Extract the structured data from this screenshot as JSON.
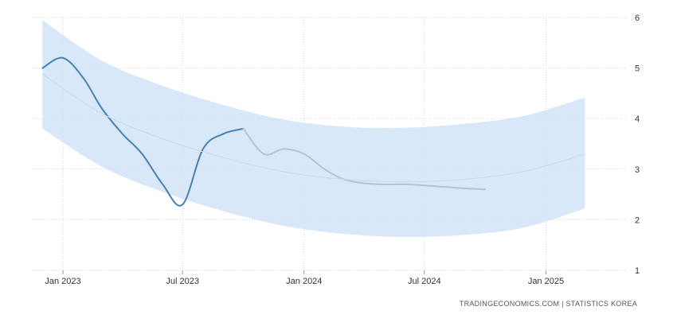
{
  "credit": "TRADINGECONOMICS.COM  |  STATISTICS KOREA",
  "chart_data": {
    "type": "line",
    "title": "",
    "xlabel": "",
    "ylabel": "",
    "x_ticks": [
      {
        "date": "2023-01-01",
        "label": "Jan 2023"
      },
      {
        "date": "2023-07-01",
        "label": "Jul 2023"
      },
      {
        "date": "2024-01-01",
        "label": "Jan 2024"
      },
      {
        "date": "2024-07-01",
        "label": "Jul 2024"
      },
      {
        "date": "2025-01-01",
        "label": "Jan 2025"
      }
    ],
    "xlim": [
      "2022-11-15",
      "2025-05-01"
    ],
    "y_ticks": [
      1,
      2,
      3,
      4,
      5,
      6
    ],
    "ylim": [
      1,
      6
    ],
    "y_axis_side": "right",
    "grid": true,
    "legend": "none",
    "series": [
      {
        "role": "actual",
        "color": "#4682b4",
        "points": [
          {
            "x": "2022-12-01",
            "y": 5.0
          },
          {
            "x": "2023-01-01",
            "y": 5.2
          },
          {
            "x": "2023-02-01",
            "y": 4.8
          },
          {
            "x": "2023-03-01",
            "y": 4.2
          },
          {
            "x": "2023-04-01",
            "y": 3.7
          },
          {
            "x": "2023-05-01",
            "y": 3.3
          },
          {
            "x": "2023-06-01",
            "y": 2.7
          },
          {
            "x": "2023-07-01",
            "y": 2.3
          },
          {
            "x": "2023-08-01",
            "y": 3.4
          },
          {
            "x": "2023-09-01",
            "y": 3.7
          },
          {
            "x": "2023-10-01",
            "y": 3.8
          }
        ]
      },
      {
        "role": "forecast",
        "color": "#b0c4de",
        "points": [
          {
            "x": "2023-10-01",
            "y": 3.8
          },
          {
            "x": "2023-11-01",
            "y": 3.3
          },
          {
            "x": "2023-12-01",
            "y": 3.4
          },
          {
            "x": "2024-01-01",
            "y": 3.3
          },
          {
            "x": "2024-02-01",
            "y": 3.0
          },
          {
            "x": "2024-03-01",
            "y": 2.8
          },
          {
            "x": "2024-04-01",
            "y": 2.72
          },
          {
            "x": "2024-05-01",
            "y": 2.7
          },
          {
            "x": "2024-06-01",
            "y": 2.7
          },
          {
            "x": "2024-07-01",
            "y": 2.68
          },
          {
            "x": "2024-08-01",
            "y": 2.65
          },
          {
            "x": "2024-09-01",
            "y": 2.62
          },
          {
            "x": "2024-10-01",
            "y": 2.6
          }
        ]
      },
      {
        "role": "trend",
        "color": "#c8d8ea",
        "points": [
          {
            "x": "2022-12-01",
            "y": 4.88
          },
          {
            "x": "2023-03-01",
            "y": 4.1
          },
          {
            "x": "2023-06-01",
            "y": 3.6
          },
          {
            "x": "2023-09-01",
            "y": 3.23
          },
          {
            "x": "2023-12-01",
            "y": 2.95
          },
          {
            "x": "2024-03-01",
            "y": 2.8
          },
          {
            "x": "2024-06-01",
            "y": 2.75
          },
          {
            "x": "2024-09-01",
            "y": 2.8
          },
          {
            "x": "2024-12-01",
            "y": 2.96
          },
          {
            "x": "2025-03-01",
            "y": 3.3
          }
        ]
      }
    ],
    "band": {
      "color": "#cfe2f8",
      "points": [
        {
          "x": "2022-12-01",
          "upper": 5.95,
          "lower": 3.8
        },
        {
          "x": "2023-03-01",
          "upper": 5.15,
          "lower": 3.05
        },
        {
          "x": "2023-06-01",
          "upper": 4.65,
          "lower": 2.55
        },
        {
          "x": "2023-09-01",
          "upper": 4.27,
          "lower": 2.17
        },
        {
          "x": "2023-12-01",
          "upper": 3.98,
          "lower": 1.88
        },
        {
          "x": "2024-03-01",
          "upper": 3.84,
          "lower": 1.72
        },
        {
          "x": "2024-06-01",
          "upper": 3.82,
          "lower": 1.66
        },
        {
          "x": "2024-09-01",
          "upper": 3.9,
          "lower": 1.7
        },
        {
          "x": "2024-12-01",
          "upper": 4.06,
          "lower": 1.85
        },
        {
          "x": "2025-03-01",
          "upper": 4.42,
          "lower": 2.22
        }
      ]
    }
  }
}
